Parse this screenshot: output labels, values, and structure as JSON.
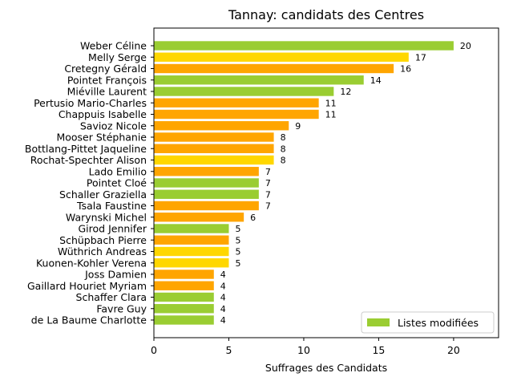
{
  "chart_data": {
    "type": "bar",
    "orientation": "horizontal",
    "title": "Tannay: candidats des Centres",
    "xlabel": "Suffrages des Candidats",
    "ylabel": "",
    "xlim": [
      0,
      23
    ],
    "xticks": [
      0,
      5,
      10,
      15,
      20
    ],
    "grid": false,
    "legend": {
      "position": "bottom-right",
      "entries": [
        {
          "label": "Listes modifiées",
          "color": "#9ACD32"
        }
      ]
    },
    "bars": [
      {
        "name": "Weber Céline",
        "value": 20,
        "color": "#9ACD32"
      },
      {
        "name": "Melly Serge",
        "value": 17,
        "color": "#FFD700"
      },
      {
        "name": "Cretegny Gérald",
        "value": 16,
        "color": "#FFA500"
      },
      {
        "name": "Pointet François",
        "value": 14,
        "color": "#9ACD32"
      },
      {
        "name": "Miéville Laurent",
        "value": 12,
        "color": "#9ACD32"
      },
      {
        "name": "Pertusio Mario-Charles",
        "value": 11,
        "color": "#FFA500"
      },
      {
        "name": "Chappuis Isabelle",
        "value": 11,
        "color": "#FFA500"
      },
      {
        "name": "Savioz Nicole",
        "value": 9,
        "color": "#FFA500"
      },
      {
        "name": "Mooser Stéphanie",
        "value": 8,
        "color": "#FFA500"
      },
      {
        "name": "Bottlang-Pittet Jaqueline",
        "value": 8,
        "color": "#FFA500"
      },
      {
        "name": "Rochat-Spechter Alison",
        "value": 8,
        "color": "#FFD700"
      },
      {
        "name": "Lado Emilio",
        "value": 7,
        "color": "#FFA500"
      },
      {
        "name": "Pointet Cloé",
        "value": 7,
        "color": "#9ACD32"
      },
      {
        "name": "Schaller Graziella",
        "value": 7,
        "color": "#9ACD32"
      },
      {
        "name": "Tsala Faustine",
        "value": 7,
        "color": "#FFA500"
      },
      {
        "name": "Warynski Michel",
        "value": 6,
        "color": "#FFA500"
      },
      {
        "name": "Girod Jennifer",
        "value": 5,
        "color": "#9ACD32"
      },
      {
        "name": "Schüpbach Pierre",
        "value": 5,
        "color": "#FFA500"
      },
      {
        "name": "Wüthrich Andreas",
        "value": 5,
        "color": "#FFD700"
      },
      {
        "name": "Kuonen-Kohler Verena",
        "value": 5,
        "color": "#FFD700"
      },
      {
        "name": "Joss Damien",
        "value": 4,
        "color": "#FFA500"
      },
      {
        "name": "Gaillard Houriet Myriam",
        "value": 4,
        "color": "#FFA500"
      },
      {
        "name": "Schaffer Clara",
        "value": 4,
        "color": "#9ACD32"
      },
      {
        "name": "Favre Guy",
        "value": 4,
        "color": "#9ACD32"
      },
      {
        "name": "de La Baume Charlotte",
        "value": 4,
        "color": "#9ACD32"
      }
    ]
  }
}
